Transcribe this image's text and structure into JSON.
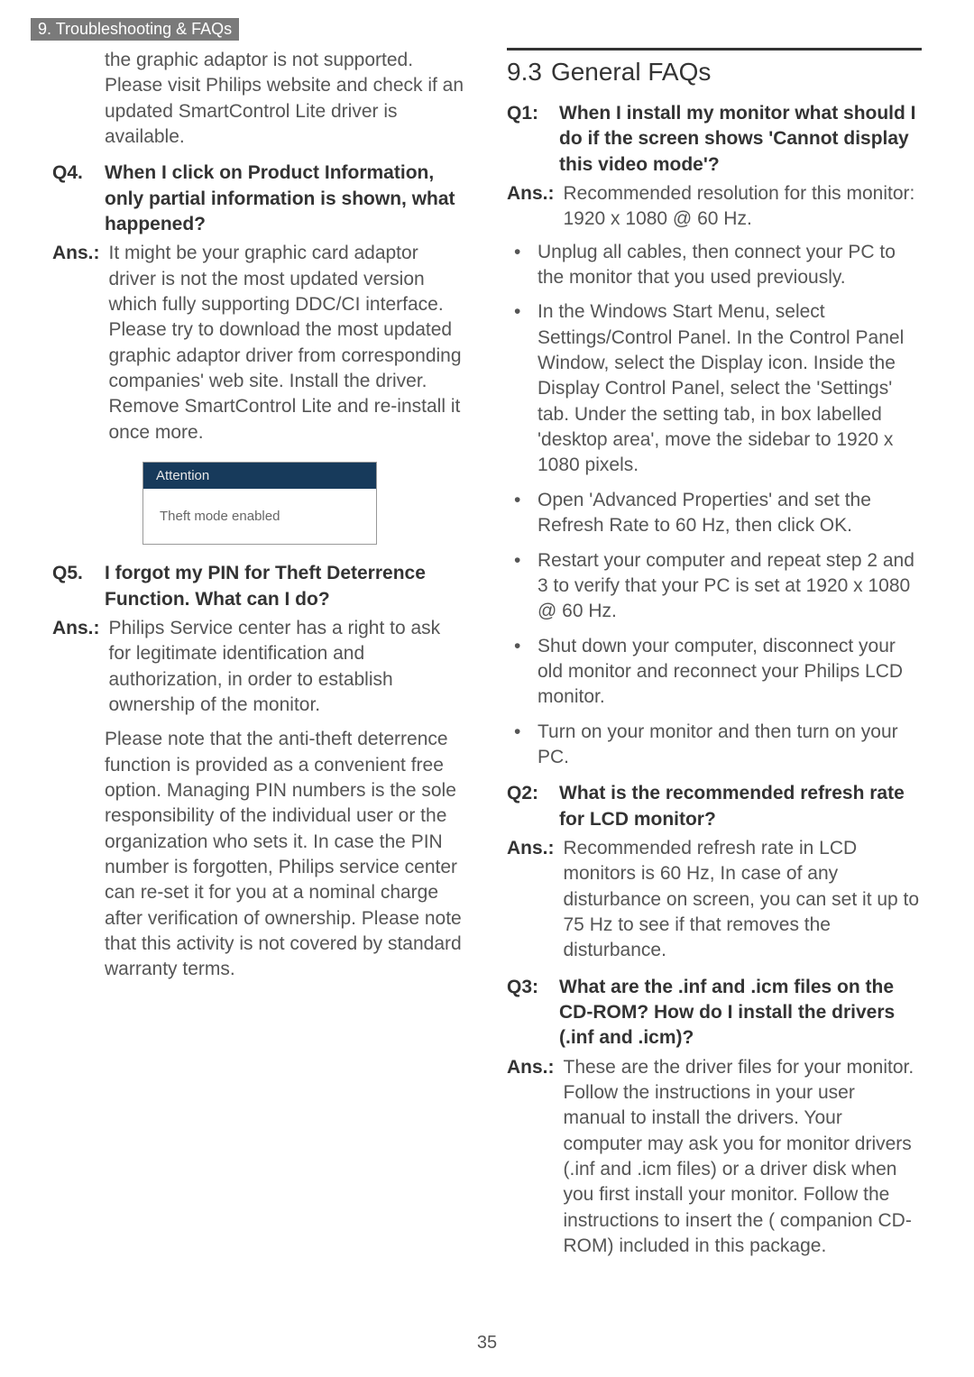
{
  "header": {
    "title": "9. Troubleshooting & FAQs"
  },
  "left": {
    "cont": "the graphic adaptor is not supported. Please visit Philips website and check if an updated SmartControl Lite driver is available.",
    "q4": {
      "label": "Q4.",
      "question": "When I click on Product Information, only partial information is shown, what happened?",
      "ans_label": "Ans.:",
      "answer": "It might be your graphic card adaptor driver is not the most updated version which fully supporting DDC/CI interface. Please try to download the most updated graphic adaptor driver from corresponding companies' web site. Install the driver. Remove SmartControl Lite and re-install it once more."
    },
    "attention": {
      "title": "Attention",
      "body": "Theft mode enabled"
    },
    "q5": {
      "label": "Q5.",
      "question": "I forgot my PIN for Theft Deterrence Function. What can I do?",
      "ans_label": "Ans.:",
      "answer": "Philips Service center has a right to ask for legitimate identification and authorization, in order to establish ownership of the monitor.",
      "note": "Please note that the anti-theft deterrence function is provided as a convenient free option.  Managing PIN numbers is the sole responsibility of the individual user or the organization who sets it. In case the PIN number is forgotten,  Philips service center can re-set it for you at a nominal charge after verification of ownership. Please note that this activity is not covered by standard warranty terms."
    }
  },
  "right": {
    "section": {
      "num": "9.3",
      "title": "General FAQs"
    },
    "q1": {
      "label": "Q1:",
      "question": "When I install my monitor what should I do if the screen shows 'Cannot display this video mode'?",
      "ans_label": "Ans.:",
      "answer": "Recommended resolution for this monitor: 1920 x 1080 @ 60 Hz.",
      "bullets": [
        "Unplug all cables, then connect your PC to the monitor that you used previously.",
        "In the Windows Start Menu, select Settings/Control Panel. In the Control Panel Window, select the Display icon. Inside the Display Control Panel, select the 'Settings' tab. Under the setting tab, in box labelled 'desktop area', move the sidebar to 1920 x 1080 pixels.",
        "Open 'Advanced Properties' and set the Refresh Rate to 60 Hz, then click OK.",
        "Restart your computer and repeat step 2 and 3 to verify that your PC is set at 1920 x 1080 @ 60 Hz.",
        "Shut down your computer, disconnect your old monitor and reconnect your Philips LCD monitor.",
        "Turn on your monitor and then turn on your PC."
      ]
    },
    "q2": {
      "label": "Q2:",
      "question": "What is the recommended refresh rate for LCD monitor?",
      "ans_label": "Ans.:",
      "answer": "Recommended refresh rate in LCD monitors is 60 Hz, In case of any disturbance on screen, you can set it up to 75 Hz to see if that removes the disturbance."
    },
    "q3": {
      "label": "Q3:",
      "question": "What are the .inf and .icm files on the CD-ROM? How do I install the drivers (.inf and .icm)?",
      "ans_label": "Ans.:",
      "answer": "These are the driver files for your monitor. Follow the instructions in your user manual to install the drivers. Your computer may ask you for monitor drivers (.inf and .icm files) or a driver disk when you first install your monitor. Follow the instructions to insert the ( companion CD-ROM) included in this package."
    }
  },
  "page_number": "35"
}
